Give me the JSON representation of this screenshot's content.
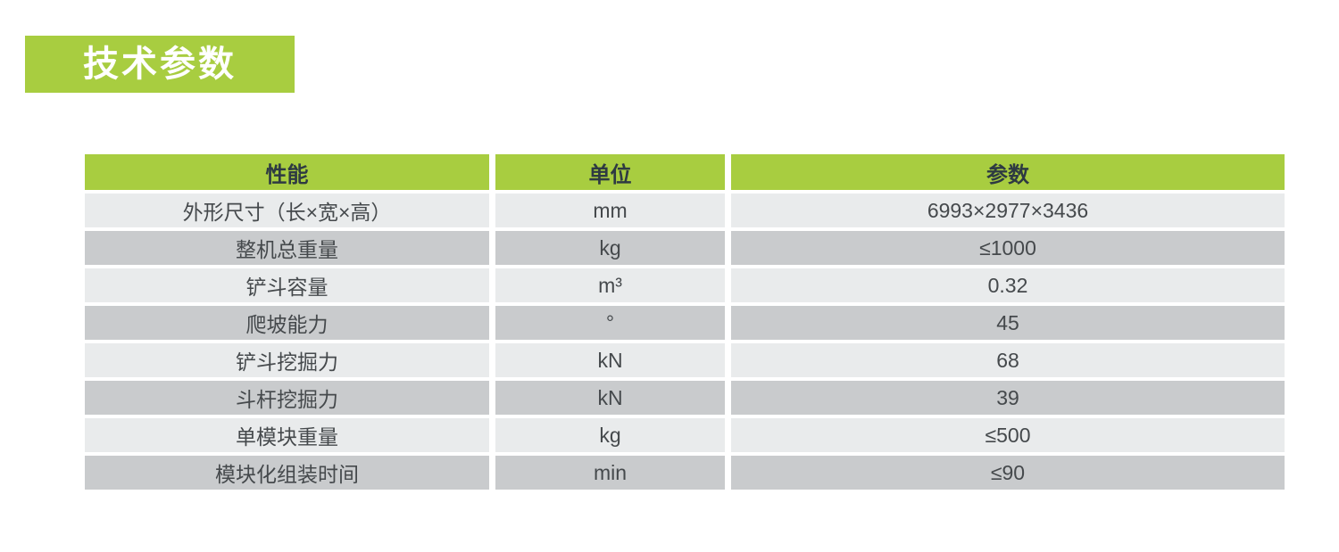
{
  "colors": {
    "accent_green": "#a8cd40",
    "title_text": "#ffffff",
    "header_text": "#2e3a42",
    "cell_text": "#45494c",
    "row_light": "#e9ebec",
    "row_dark": "#c9cbcd"
  },
  "title": {
    "label": "技术参数"
  },
  "table": {
    "headers": {
      "property": "性能",
      "unit": "单位",
      "value": "参数"
    },
    "rows": [
      {
        "property": "外形尺寸（长×宽×高）",
        "unit": "mm",
        "value": "6993×2977×3436"
      },
      {
        "property": "整机总重量",
        "unit": "kg",
        "value": "≤1000"
      },
      {
        "property": "铲斗容量",
        "unit": "m³",
        "value": "0.32"
      },
      {
        "property": "爬坡能力",
        "unit": "°",
        "value": "45"
      },
      {
        "property": "铲斗挖掘力",
        "unit": "kN",
        "value": "68"
      },
      {
        "property": "斗杆挖掘力",
        "unit": "kN",
        "value": "39"
      },
      {
        "property": "单模块重量",
        "unit": "kg",
        "value": "≤500"
      },
      {
        "property": "模块化组装时间",
        "unit": "min",
        "value": "≤90"
      }
    ]
  }
}
